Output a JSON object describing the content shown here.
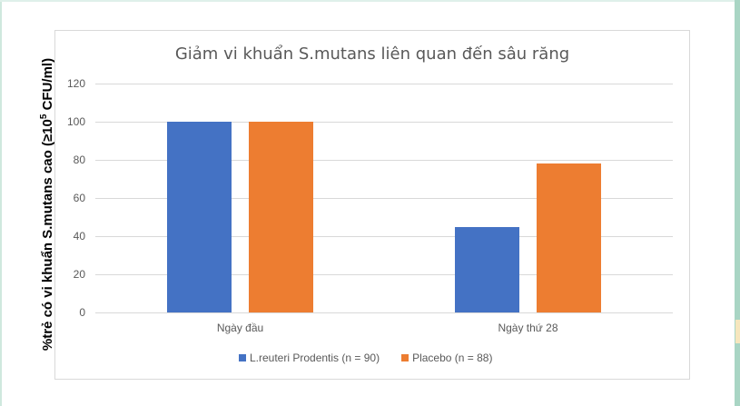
{
  "chart_data": {
    "type": "bar",
    "title": "Giảm vi khuẩn S.mutans liên quan đến sâu răng",
    "xlabel": "",
    "ylabel": "%trẻ có vi khuẩn S.mutans cao (≥10^5 CFU/ml)",
    "ylabel_prefix": "%trẻ có vi khuẩn S.mutans cao (≥10",
    "ylabel_sup": "5",
    "ylabel_suffix": " CFU/ml)",
    "ylim": [
      0,
      120
    ],
    "yticks": [
      "0",
      "20",
      "40",
      "60",
      "80",
      "100",
      "120"
    ],
    "grid": true,
    "legend_position": "bottom",
    "categories": [
      "Ngày đầu",
      "Ngày thứ 28"
    ],
    "series": [
      {
        "name": "L.reuteri Prodentis (n = 90)",
        "color": "#4472c4",
        "values": [
          100,
          45
        ]
      },
      {
        "name": "Placebo (n = 88)",
        "color": "#ed7d31",
        "values": [
          100,
          78
        ]
      }
    ]
  }
}
